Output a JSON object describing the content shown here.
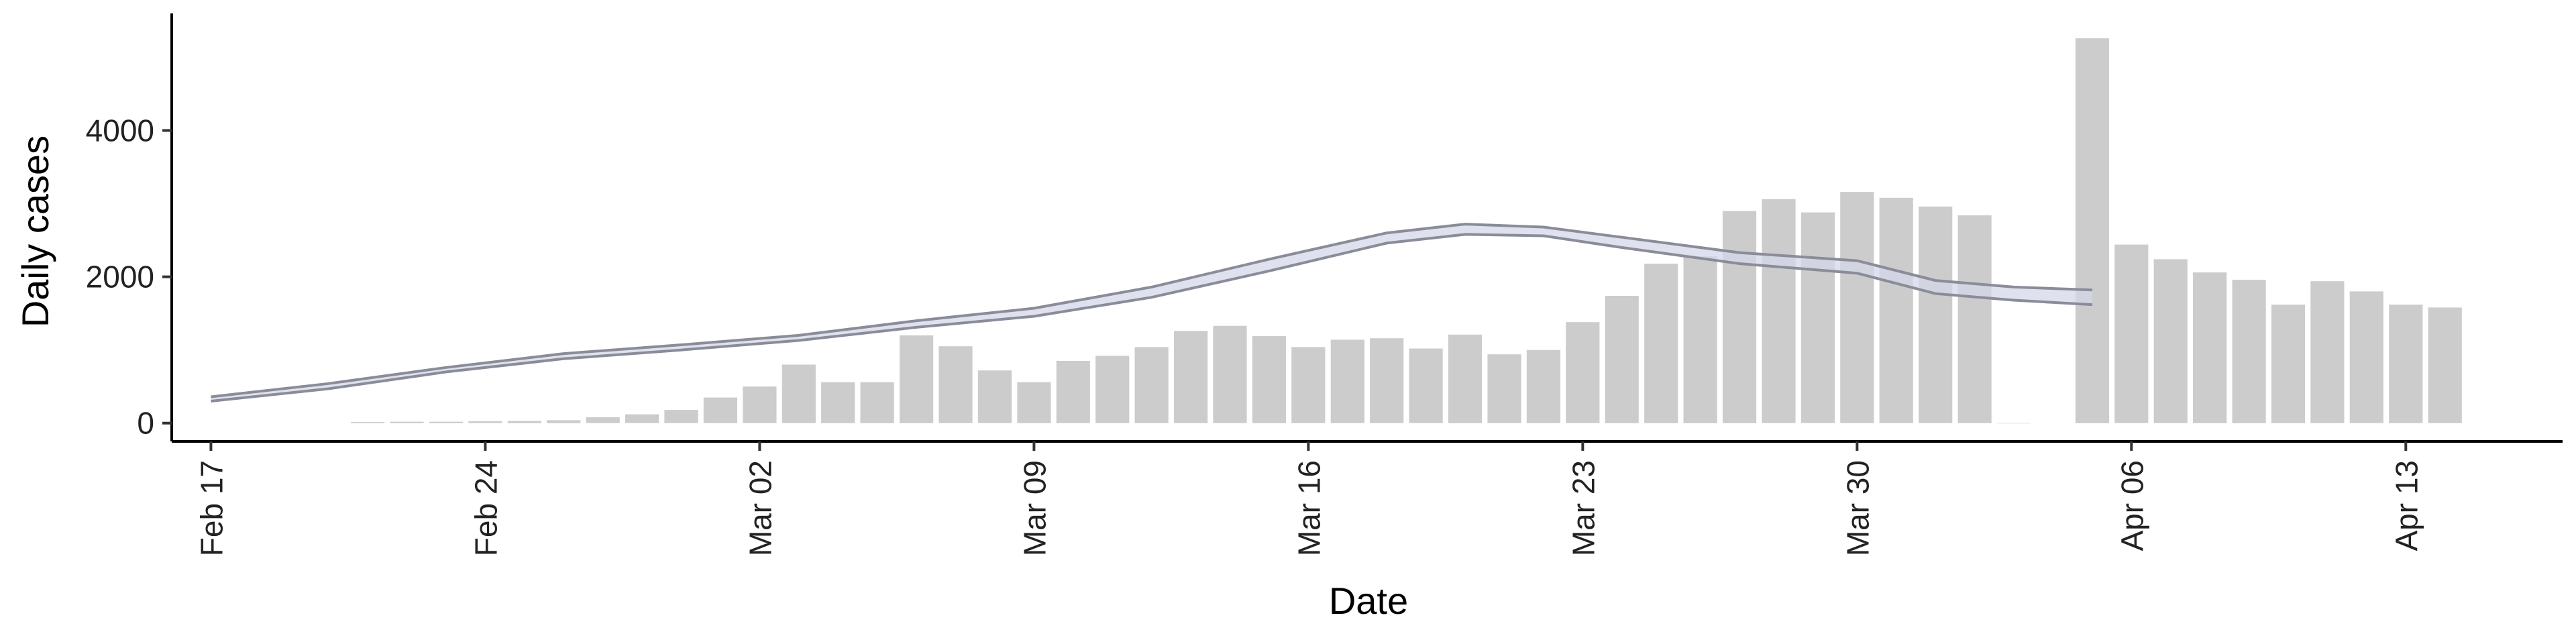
{
  "chart_data": {
    "type": "bar",
    "xlabel": "Date",
    "ylabel": "Daily cases",
    "xlim": [
      "2020-02-16",
      "2020-04-17"
    ],
    "ylim": [
      -250,
      5600
    ],
    "grid": false,
    "x_ticks": [
      {
        "date": "2020-02-17",
        "label": "Feb 17"
      },
      {
        "date": "2020-02-24",
        "label": "Feb 24"
      },
      {
        "date": "2020-03-02",
        "label": "Mar 02"
      },
      {
        "date": "2020-03-09",
        "label": "Mar 09"
      },
      {
        "date": "2020-03-16",
        "label": "Mar 16"
      },
      {
        "date": "2020-03-23",
        "label": "Mar 23"
      },
      {
        "date": "2020-03-30",
        "label": "Mar 30"
      },
      {
        "date": "2020-04-06",
        "label": "Apr 06"
      },
      {
        "date": "2020-04-13",
        "label": "Apr 13"
      }
    ],
    "y_ticks": [
      0,
      2000,
      4000
    ],
    "bar_color": "#cccccc",
    "line_color": "#8a8c98",
    "band_color": "#d4d8e8",
    "bars": {
      "dates": [
        "2020-02-21",
        "2020-02-22",
        "2020-02-23",
        "2020-02-24",
        "2020-02-25",
        "2020-02-26",
        "2020-02-27",
        "2020-02-28",
        "2020-02-29",
        "2020-03-01",
        "2020-03-02",
        "2020-03-03",
        "2020-03-04",
        "2020-03-05",
        "2020-03-06",
        "2020-03-07",
        "2020-03-08",
        "2020-03-09",
        "2020-03-10",
        "2020-03-11",
        "2020-03-12",
        "2020-03-13",
        "2020-03-14",
        "2020-03-15",
        "2020-03-16",
        "2020-03-17",
        "2020-03-18",
        "2020-03-19",
        "2020-03-20",
        "2020-03-21",
        "2020-03-22",
        "2020-03-23",
        "2020-03-24",
        "2020-03-25",
        "2020-03-26",
        "2020-03-27",
        "2020-03-28",
        "2020-03-29",
        "2020-03-30",
        "2020-03-31",
        "2020-04-01",
        "2020-04-02",
        "2020-04-03",
        "2020-04-05",
        "2020-04-06",
        "2020-04-07",
        "2020-04-08",
        "2020-04-09",
        "2020-04-10",
        "2020-04-11",
        "2020-04-12",
        "2020-04-13",
        "2020-04-14"
      ],
      "values": [
        15,
        20,
        20,
        25,
        30,
        40,
        80,
        120,
        180,
        350,
        500,
        800,
        560,
        560,
        1200,
        1050,
        720,
        560,
        850,
        920,
        1040,
        1260,
        1330,
        1190,
        1040,
        1140,
        1160,
        1020,
        1210,
        940,
        1000,
        1380,
        1740,
        2180,
        2280,
        2900,
        3060,
        2880,
        3160,
        3080,
        2960,
        2840,
        0,
        5260,
        2440,
        2240,
        2060,
        1960,
        1620,
        1940,
        1800,
        1620,
        1580
      ]
    },
    "trend": {
      "dates": [
        "2020-02-17",
        "2020-02-20",
        "2020-02-23",
        "2020-02-26",
        "2020-02-29",
        "2020-03-03",
        "2020-03-06",
        "2020-03-09",
        "2020-03-12",
        "2020-03-15",
        "2020-03-18",
        "2020-03-20",
        "2020-03-22",
        "2020-03-24",
        "2020-03-27",
        "2020-03-30",
        "2020-04-01",
        "2020-04-03",
        "2020-04-05"
      ],
      "upper": [
        360,
        540,
        760,
        950,
        1070,
        1200,
        1400,
        1570,
        1860,
        2240,
        2600,
        2720,
        2680,
        2540,
        2330,
        2220,
        1950,
        1860,
        1820
      ],
      "lower": [
        300,
        470,
        700,
        880,
        1000,
        1130,
        1310,
        1460,
        1720,
        2080,
        2460,
        2580,
        2560,
        2400,
        2180,
        2050,
        1770,
        1680,
        1620
      ]
    }
  }
}
